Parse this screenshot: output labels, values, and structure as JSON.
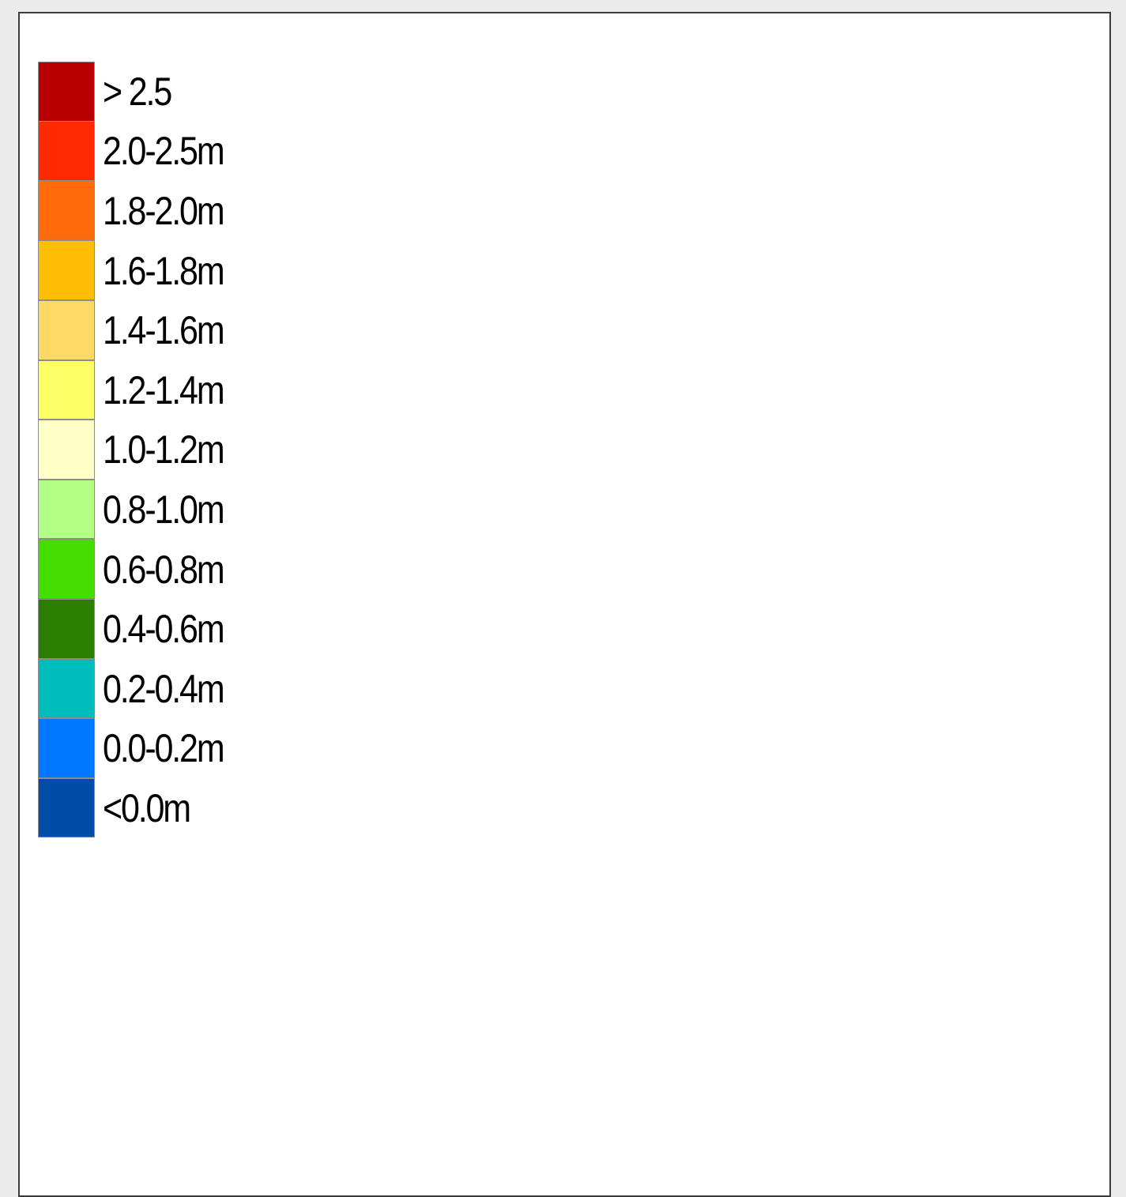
{
  "legend": {
    "items": [
      {
        "label": "> 2.5",
        "color": "#b80000"
      },
      {
        "label": "2.0-2.5m",
        "color": "#ff2a00"
      },
      {
        "label": "1.8-2.0m",
        "color": "#ff6a0a"
      },
      {
        "label": "1.6-1.8m",
        "color": "#ffbd05"
      },
      {
        "label": "1.4-1.6m",
        "color": "#ffd966"
      },
      {
        "label": "1.2-1.4m",
        "color": "#ffff66"
      },
      {
        "label": "1.0-1.2m",
        "color": "#ffffc8"
      },
      {
        "label": "0.8-1.0m",
        "color": "#b3ff85"
      },
      {
        "label": "0.6-0.8m",
        "color": "#44dd00"
      },
      {
        "label": "0.4-0.6m",
        "color": "#2a7f00"
      },
      {
        "label": "0.2-0.4m",
        "color": "#00bdbd"
      },
      {
        "label": "0.0-0.2m",
        "color": "#0078ff"
      },
      {
        "label": "<0.0m",
        "color": "#004ca6"
      }
    ]
  }
}
